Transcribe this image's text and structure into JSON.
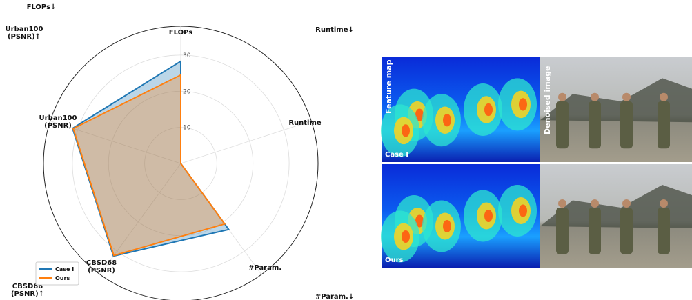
{
  "chart_data": {
    "type": "radar",
    "axes": [
      [
        "FLOPs"
      ],
      [
        "Runtime"
      ],
      [
        "#Param."
      ],
      [
        "CBSD68",
        "(PSNR)"
      ],
      [
        "Urban100",
        "(PSNR)"
      ]
    ],
    "corner_labels": [
      [
        "FLOPs↓"
      ],
      [
        "Runtime↓"
      ],
      [
        "#Param.↓"
      ],
      [
        "CBSD68",
        "(PSNR)↑"
      ],
      [
        "Urban100",
        "(PSNR)↑"
      ]
    ],
    "rlim": [
      0,
      38
    ],
    "rticks": [
      10,
      20,
      30
    ],
    "grid": true,
    "legend": "lower left",
    "series": [
      {
        "name": "Case I",
        "color": "#1f77b4",
        "values": [
          28.3,
          0,
          22.6,
          31.7,
          31.5
        ]
      },
      {
        "name": "Ours",
        "color": "#ff7f0e",
        "values": [
          24.5,
          0,
          20.7,
          31.5,
          31.3
        ]
      }
    ]
  },
  "figure": {
    "column_labels": [
      "Feature map",
      "Denoised image"
    ],
    "row_labels": [
      "Case I",
      "Ours"
    ]
  }
}
